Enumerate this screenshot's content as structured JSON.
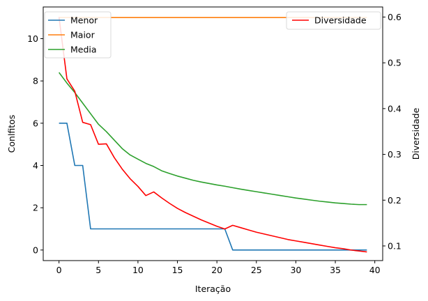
{
  "chart_data": {
    "type": "line",
    "xlabel": "Iteração",
    "ylabel": "Conlfitos",
    "y2label": "Diversidade",
    "xlim": [
      -2,
      41
    ],
    "ylim": [
      -0.5,
      11.5
    ],
    "y2lim": [
      0.068,
      0.622
    ],
    "xticks": [
      0,
      5,
      10,
      15,
      20,
      25,
      30,
      35,
      40
    ],
    "yticks": [
      0,
      2,
      4,
      6,
      8,
      10
    ],
    "y2ticks": [
      0.1,
      0.2,
      0.3,
      0.4,
      0.5,
      0.6
    ],
    "grid": false,
    "legend_left": "top-left",
    "legend_right": "top-right",
    "x": [
      0,
      1,
      2,
      3,
      4,
      5,
      6,
      7,
      8,
      9,
      10,
      11,
      12,
      13,
      14,
      15,
      16,
      17,
      18,
      19,
      20,
      21,
      22,
      23,
      24,
      25,
      26,
      27,
      28,
      29,
      30,
      31,
      32,
      33,
      34,
      35,
      36,
      37,
      38,
      39
    ],
    "series": [
      {
        "name": "Menor",
        "axis": "left",
        "color": "#1f77b4",
        "values": [
          6,
          6,
          4,
          4,
          1,
          1,
          1,
          1,
          1,
          1,
          1,
          1,
          1,
          1,
          1,
          1,
          1,
          1,
          1,
          1,
          1,
          1,
          0,
          0,
          0,
          0,
          0,
          0,
          0,
          0,
          0,
          0,
          0,
          0,
          0,
          0,
          0,
          0,
          0,
          0
        ]
      },
      {
        "name": "Maior",
        "axis": "left",
        "color": "#ff7f0e",
        "values": [
          11,
          11,
          11,
          11,
          11,
          11,
          11,
          11,
          11,
          11,
          11,
          11,
          11,
          11,
          11,
          11,
          11,
          11,
          11,
          11,
          11,
          11,
          11,
          11,
          11,
          11,
          11,
          11,
          11,
          11,
          11,
          11,
          11,
          11,
          11,
          11,
          11,
          11,
          11,
          11
        ]
      },
      {
        "name": "Media",
        "axis": "left",
        "color": "#2ca02c",
        "values": [
          8.4,
          7.9,
          7.45,
          6.95,
          6.45,
          5.95,
          5.6,
          5.2,
          4.8,
          4.5,
          4.3,
          4.1,
          3.95,
          3.75,
          3.62,
          3.5,
          3.4,
          3.3,
          3.22,
          3.15,
          3.08,
          3.02,
          2.95,
          2.88,
          2.82,
          2.76,
          2.7,
          2.64,
          2.58,
          2.52,
          2.46,
          2.41,
          2.36,
          2.31,
          2.27,
          2.23,
          2.2,
          2.17,
          2.15,
          2.15
        ]
      },
      {
        "name": "Diversidade",
        "axis": "right",
        "color": "#ff0000",
        "values": [
          0.6,
          0.465,
          0.438,
          0.37,
          0.365,
          0.322,
          0.323,
          0.293,
          0.268,
          0.247,
          0.23,
          0.21,
          0.218,
          0.205,
          0.193,
          0.182,
          0.173,
          0.165,
          0.157,
          0.15,
          0.143,
          0.137,
          0.145,
          0.14,
          0.135,
          0.13,
          0.126,
          0.122,
          0.118,
          0.114,
          0.111,
          0.108,
          0.105,
          0.102,
          0.099,
          0.096,
          0.094,
          0.091,
          0.089,
          0.087
        ]
      }
    ]
  }
}
